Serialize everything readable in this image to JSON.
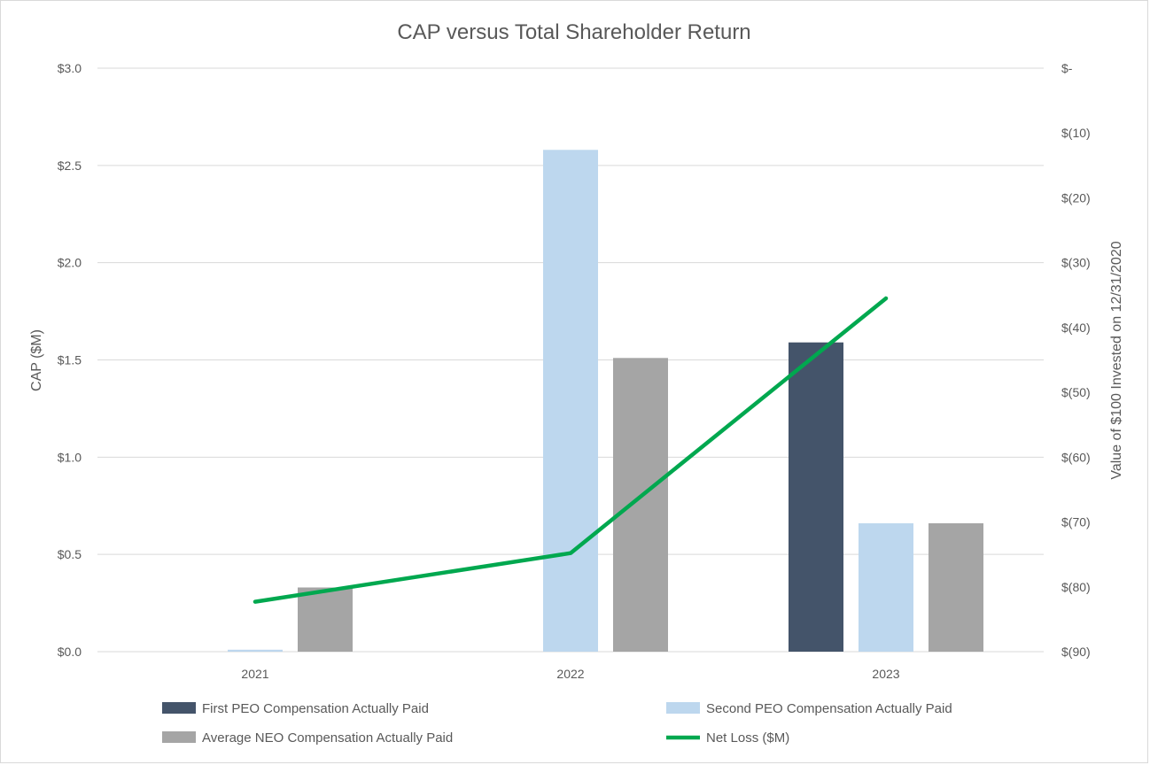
{
  "chart_data": {
    "type": "bar",
    "title": "CAP versus Total Shareholder Return",
    "categories": [
      "2021",
      "2022",
      "2023"
    ],
    "ylabel": "CAP ($M)",
    "y2label": "Value of $100 Invested on 12/31/2020",
    "ylim": [
      0,
      3.0
    ],
    "yticks": [
      {
        "value": 0.0,
        "label": "$0.0"
      },
      {
        "value": 0.5,
        "label": "$0.5"
      },
      {
        "value": 1.0,
        "label": "$1.0"
      },
      {
        "value": 1.5,
        "label": "$1.5"
      },
      {
        "value": 2.0,
        "label": "$2.0"
      },
      {
        "value": 2.5,
        "label": "$2.5"
      },
      {
        "value": 3.0,
        "label": "$3.0"
      }
    ],
    "y2lim": [
      -90,
      0
    ],
    "y2ticks": [
      {
        "value": 0,
        "label": "$-"
      },
      {
        "value": -10,
        "label": "$(10)"
      },
      {
        "value": -20,
        "label": "$(20)"
      },
      {
        "value": -30,
        "label": "$(30)"
      },
      {
        "value": -40,
        "label": "$(40)"
      },
      {
        "value": -50,
        "label": "$(50)"
      },
      {
        "value": -60,
        "label": "$(60)"
      },
      {
        "value": -70,
        "label": "$(70)"
      },
      {
        "value": -80,
        "label": "$(80)"
      },
      {
        "value": -90,
        "label": "$(90)"
      }
    ],
    "series": [
      {
        "name": "First PEO Compensation Actually Paid",
        "kind": "bar",
        "axis": "left",
        "color": "#44546a",
        "values": [
          null,
          null,
          1.59
        ]
      },
      {
        "name": "Second PEO Compensation Actually Paid",
        "kind": "bar",
        "axis": "left",
        "color": "#bdd7ee",
        "values": [
          0.01,
          2.58,
          0.66
        ]
      },
      {
        "name": "Average NEO Compensation Actually Paid",
        "kind": "bar",
        "axis": "left",
        "color": "#a5a5a5",
        "values": [
          0.33,
          1.51,
          0.66
        ]
      },
      {
        "name": "Net Loss ($M)",
        "kind": "line",
        "axis": "right",
        "color": "#00a84f",
        "values": [
          -82.3,
          -74.8,
          -35.5
        ]
      }
    ],
    "grid": true,
    "legend_position": "bottom"
  }
}
